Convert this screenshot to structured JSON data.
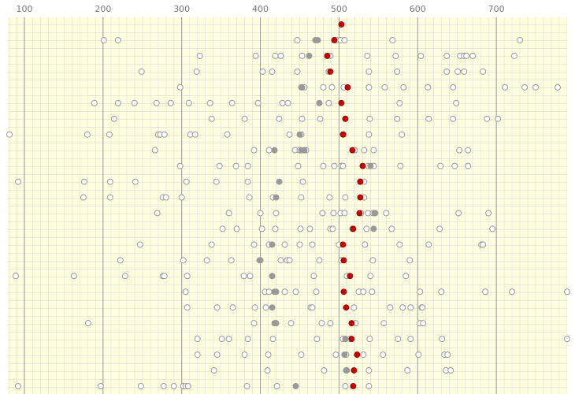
{
  "chart_data": {
    "type": "dot-strip",
    "xlim": [
      79,
      790
    ],
    "xticks": [
      100,
      200,
      300,
      400,
      500,
      600,
      700
    ],
    "background": "#ffffe0",
    "grid": true,
    "point_color": "#999999",
    "highlight_color": "#999999",
    "mean_color": "#cc0000",
    "rows": [
      {
        "mean": 503,
        "highlighted": [],
        "values": []
      },
      {
        "mean": 494,
        "highlighted": [
          470,
          473
        ],
        "values": [
          201,
          219,
          447,
          497,
          502,
          507,
          568,
          730
        ]
      },
      {
        "mean": 485,
        "highlighted": [
          462
        ],
        "values": [
          323,
          394,
          419,
          426,
          453,
          489,
          536,
          572,
          604,
          637,
          654,
          659,
          662,
          670,
          723
        ]
      },
      {
        "mean": 489,
        "highlighted": [],
        "values": [
          249,
          319,
          403,
          415,
          447,
          487,
          538,
          574,
          637,
          651,
          659,
          683
        ]
      },
      {
        "mean": 511,
        "highlighted": [
          453
        ],
        "values": [
          298,
          452,
          456,
          480,
          491,
          506,
          538,
          558,
          582,
          613,
          645,
          711,
          736,
          750,
          778
        ]
      },
      {
        "mean": 503,
        "highlighted": [
          475
        ],
        "values": [
          189,
          219,
          240,
          268,
          286,
          309,
          336,
          364,
          397,
          428,
          435,
          487,
          577,
          649
        ]
      },
      {
        "mean": 508,
        "highlighted": [],
        "values": [
          214,
          338,
          380,
          424,
          453,
          476,
          508,
          539,
          574,
          614,
          645,
          688,
          702
        ]
      },
      {
        "mean": 505,
        "highlighted": [
          450
        ],
        "values": [
          81,
          180,
          208,
          270,
          273,
          278,
          311,
          317,
          358,
          437,
          452,
          506,
          538,
          580
        ]
      },
      {
        "mean": 517,
        "highlighted": [
          418,
          452,
          456
        ],
        "values": [
          266,
          392,
          411,
          444,
          450,
          458,
          518,
          520,
          532,
          544,
          653,
          664
        ]
      },
      {
        "mean": 530,
        "highlighted": [
          540
        ],
        "values": [
          298,
          348,
          369,
          384,
          448,
          480,
          494,
          503,
          505,
          537,
          544,
          578,
          629,
          647,
          664
        ]
      },
      {
        "mean": 527,
        "highlighted": [
          424
        ],
        "values": [
          92,
          176,
          209,
          241,
          306,
          344,
          384,
          454,
          527,
          532
        ]
      },
      {
        "mean": 527,
        "highlighted": [
          420
        ],
        "values": [
          175,
          209,
          276,
          280,
          300,
          386,
          416,
          452,
          488,
          508,
          532
        ]
      },
      {
        "mean": 526,
        "highlighted": [
          545
        ],
        "values": [
          269,
          360,
          400,
          420,
          479,
          493,
          502,
          507,
          528,
          537,
          543,
          546,
          560,
          652,
          690
        ]
      },
      {
        "mean": 518,
        "highlighted": [
          544
        ],
        "values": [
          352,
          370,
          402,
          419,
          451,
          463,
          489,
          492,
          517,
          535,
          567,
          628,
          695
        ]
      },
      {
        "mean": 505,
        "highlighted": [
          415
        ],
        "values": [
          247,
          338,
          392,
          411,
          431,
          450,
          466,
          500,
          533,
          577,
          614,
          681,
          683
        ]
      },
      {
        "mean": 506,
        "highlighted": [
          400
        ],
        "values": [
          222,
          302,
          332,
          363,
          399,
          426,
          434,
          437,
          475,
          503,
          543,
          590
        ]
      },
      {
        "mean": 514,
        "highlighted": [
          415
        ],
        "values": [
          89,
          163,
          228,
          276,
          278,
          307,
          379,
          387,
          468,
          510,
          540,
          585
        ]
      },
      {
        "mean": 506,
        "highlighted": [
          420,
          418
        ],
        "values": [
          305,
          406,
          411,
          431,
          445,
          471,
          525,
          531,
          542,
          603,
          630,
          686,
          720,
          790
        ]
      },
      {
        "mean": 509,
        "highlighted": [
          415
        ],
        "values": [
          307,
          345,
          365,
          393,
          407,
          464,
          466,
          519,
          565,
          581,
          591,
          605,
          606
        ]
      },
      {
        "mean": 516,
        "highlighted": [
          418,
          419
        ],
        "values": [
          181,
          392,
          420,
          439,
          478,
          489,
          521,
          557,
          603,
          607
        ]
      },
      {
        "mean": 516,
        "highlighted": [
          508
        ],
        "values": [
          320,
          351,
          360,
          384,
          416,
          472,
          505,
          514,
          539,
          575,
          591,
          631,
          790
        ]
      },
      {
        "mean": 523,
        "highlighted": [
          507
        ],
        "values": [
          320,
          345,
          380,
          410,
          452,
          496,
          509,
          531,
          556,
          601,
          634,
          638
        ]
      },
      {
        "mean": 519,
        "highlighted": [
          510
        ],
        "values": [
          341,
          409,
          481,
          509,
          538,
          587,
          636,
          642
        ]
      },
      {
        "mean": 518,
        "highlighted": [
          445
        ],
        "values": [
          92,
          197,
          248,
          277,
          290,
          302,
          305,
          308,
          383,
          421,
          508,
          538
        ]
      }
    ]
  }
}
